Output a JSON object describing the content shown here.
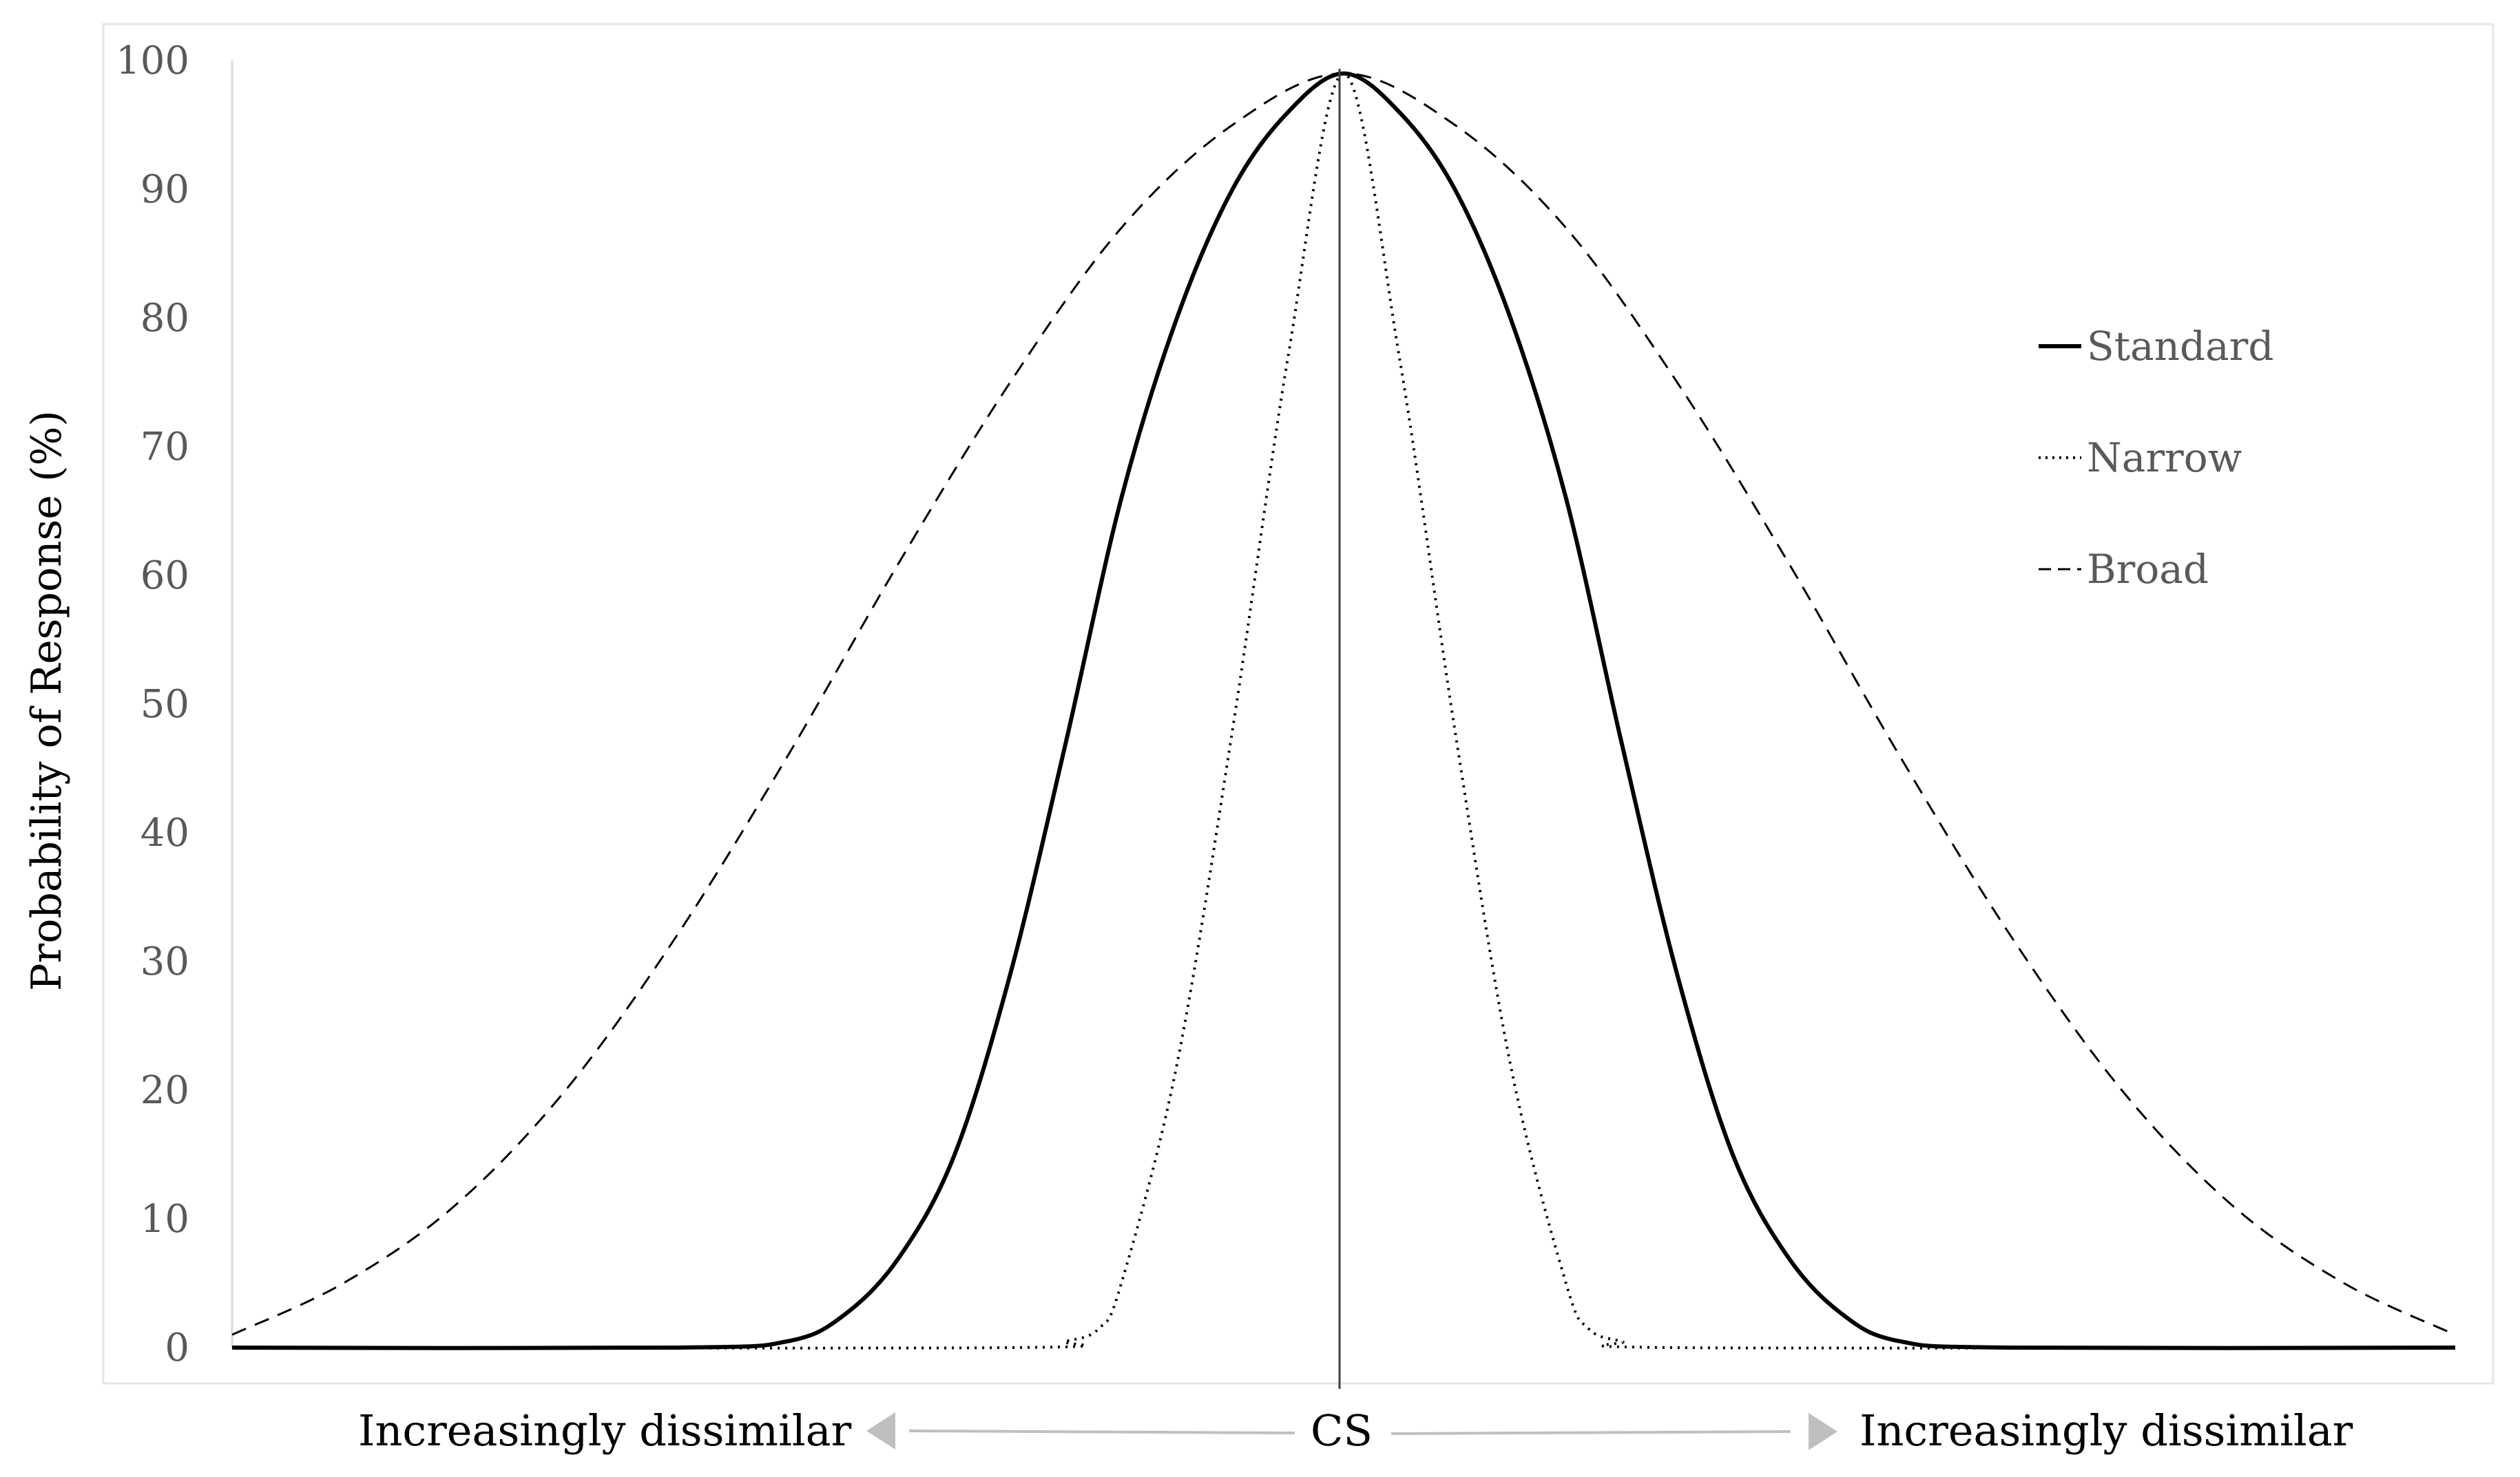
{
  "chart_data": {
    "type": "line",
    "title": "",
    "xlabel": "",
    "ylabel": "Probability of Response (%)",
    "ylim": [
      0,
      100
    ],
    "xlim": [
      -1,
      1
    ],
    "yticks": [
      0,
      10,
      20,
      30,
      40,
      50,
      60,
      70,
      80,
      90,
      100
    ],
    "grid": false,
    "legend": "right",
    "center_label": "CS",
    "left_label": "Increasingly dissimilar",
    "right_label": "Increasingly dissimilar",
    "arrow_color": "#bfbfbf",
    "series": [
      {
        "name": "Standard",
        "style": "solid",
        "x": [
          -1.0,
          -0.6,
          -0.5,
          -0.45,
          -0.4,
          -0.35,
          -0.3,
          -0.25,
          -0.2,
          -0.15,
          -0.1,
          -0.05,
          0.0,
          0.05,
          0.1,
          0.15,
          0.2,
          0.25,
          0.3,
          0.35,
          0.4,
          0.45,
          0.5,
          0.6,
          1.0
        ],
        "y": [
          0,
          0,
          0.5,
          2.5,
          7,
          15,
          29,
          47,
          66,
          80,
          90,
          96,
          99,
          96,
          90,
          80,
          66,
          47,
          29,
          15,
          7,
          2.5,
          0.5,
          0,
          0
        ]
      },
      {
        "name": "Narrow",
        "style": "dotted",
        "x": [
          -1.0,
          -0.3,
          -0.25,
          -0.22,
          -0.2,
          -0.15,
          -0.1,
          -0.05,
          0.0,
          0.05,
          0.1,
          0.15,
          0.2,
          0.22,
          0.25,
          0.3,
          1.0
        ],
        "y": [
          0,
          0,
          0.5,
          1.5,
          5,
          22,
          48,
          77,
          99,
          77,
          48,
          22,
          5,
          1.5,
          0.5,
          0,
          0
        ]
      },
      {
        "name": "Broad",
        "style": "dashed",
        "x": [
          -1.0,
          -0.9,
          -0.8,
          -0.7,
          -0.6,
          -0.5,
          -0.4,
          -0.3,
          -0.2,
          -0.1,
          0.0,
          0.1,
          0.2,
          0.3,
          0.4,
          0.5,
          0.6,
          0.7,
          0.8,
          0.9,
          1.0
        ],
        "y": [
          1,
          5,
          11,
          20,
          32,
          46,
          61,
          75,
          87,
          95,
          99,
          95,
          87,
          75,
          61,
          46,
          32,
          20,
          11,
          5,
          1
        ]
      }
    ]
  }
}
